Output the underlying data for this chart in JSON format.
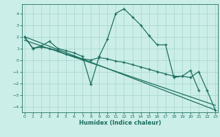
{
  "line1_x": [
    0,
    1,
    2,
    3,
    4,
    5,
    6,
    7,
    8,
    9,
    10,
    11,
    12,
    13,
    14,
    15,
    16,
    17,
    18,
    19,
    20,
    21
  ],
  "line1_y": [
    2.0,
    1.0,
    1.2,
    1.6,
    1.0,
    0.8,
    0.6,
    0.3,
    -2.1,
    0.3,
    1.8,
    4.0,
    4.4,
    3.7,
    3.0,
    2.1,
    1.3,
    1.3,
    -1.5,
    -1.4,
    -0.9,
    -2.6
  ],
  "line2_x": [
    0,
    1,
    2,
    3,
    4,
    5,
    6,
    7,
    8,
    9,
    10,
    11,
    12,
    13,
    14,
    15,
    16,
    17,
    18,
    19,
    20,
    21,
    22,
    23
  ],
  "line2_y": [
    2.0,
    1.0,
    1.1,
    1.0,
    0.8,
    0.5,
    0.3,
    0.1,
    0.0,
    0.2,
    0.1,
    -0.1,
    -0.2,
    -0.4,
    -0.6,
    -0.8,
    -1.0,
    -1.2,
    -1.4,
    -1.4,
    -1.5,
    -1.0,
    -2.6,
    -4.3
  ],
  "line3_x": [
    0,
    23
  ],
  "line3_y": [
    2.0,
    -4.3
  ],
  "line4_x": [
    0,
    23
  ],
  "line4_y": [
    1.7,
    -3.9
  ],
  "bg_color": "#cceee8",
  "line_color": "#1a6e5e",
  "grid_color": "#a8d8d0",
  "xlabel": "Humidex (Indice chaleur)",
  "ylim": [
    -4.5,
    4.8
  ],
  "xlim": [
    -0.3,
    23.3
  ],
  "yticks": [
    -4,
    -3,
    -2,
    -1,
    0,
    1,
    2,
    3,
    4
  ],
  "xticks": [
    0,
    1,
    2,
    3,
    4,
    5,
    6,
    7,
    8,
    9,
    10,
    11,
    12,
    13,
    14,
    15,
    16,
    17,
    18,
    19,
    20,
    21,
    22,
    23
  ]
}
